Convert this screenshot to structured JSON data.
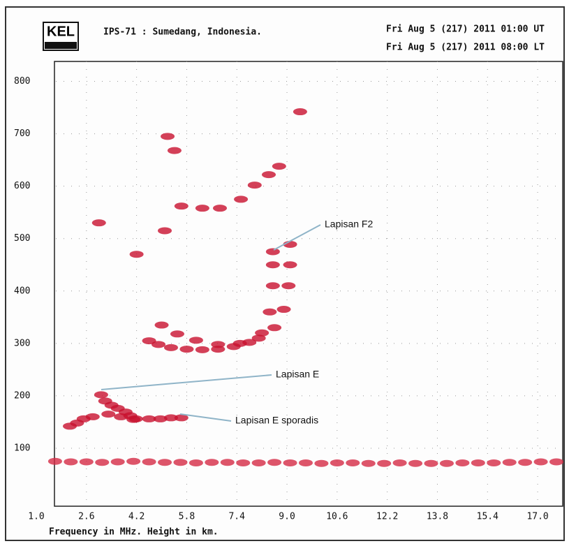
{
  "header": {
    "logo": "KEL",
    "station": "IPS-71 : Sumedang, Indonesia.",
    "time_ut": "Fri Aug  5 (217) 2011 01:00 UT",
    "time_lt": "Fri Aug  5 (217) 2011 08:00 LT"
  },
  "chart_data": {
    "type": "scatter",
    "x_label": "Frequency in MHz. Height in km.",
    "xlim": [
      1.0,
      17.8
    ],
    "ylim": [
      0,
      838
    ],
    "xticks": [
      {
        "value": 1,
        "label": "1.0"
      },
      2.6,
      4.2,
      5.8,
      7.4,
      {
        "value": 9,
        "label": "9.0"
      },
      10.6,
      12.2,
      13.8,
      15.4,
      {
        "value": 17,
        "label": "17.0"
      }
    ],
    "yticks": [
      100,
      200,
      300,
      400,
      500,
      600,
      700,
      800
    ],
    "grid": true,
    "series": [
      {
        "color": "#c8102e",
        "x": [
          4.6,
          4.9,
          5.3,
          5.8,
          6.3,
          6.8,
          7.3,
          7.8,
          8.2,
          8.45,
          8.55,
          8.55,
          8.55
        ],
        "values": [
          305,
          298,
          292,
          289,
          288,
          289,
          294,
          302,
          320,
          360,
          410,
          450,
          475
        ]
      },
      {
        "color": "#c8102e",
        "x": [
          5.0,
          5.5,
          6.1,
          6.8,
          7.5,
          8.1,
          8.6,
          8.9,
          9.05,
          9.1,
          9.1
        ],
        "values": [
          335,
          318,
          306,
          298,
          300,
          310,
          330,
          365,
          410,
          450,
          489
        ]
      },
      {
        "color": "#c8102e",
        "x": [
          5.19,
          5.41,
          5.63,
          6.3,
          6.86,
          7.53,
          7.97,
          8.42,
          8.75,
          9.42,
          3.0,
          4.2,
          5.1
        ],
        "values": [
          695,
          668,
          562,
          558,
          558,
          575,
          602,
          622,
          638,
          742,
          530,
          470,
          515
        ]
      },
      {
        "color": "#c8102e",
        "x": [
          3.07,
          3.2,
          3.4,
          3.6,
          3.85,
          4.0,
          4.18,
          3.3,
          3.7,
          4.1
        ],
        "values": [
          202,
          190,
          182,
          176,
          169,
          162,
          156,
          165,
          160,
          155
        ]
      },
      {
        "color": "#c8102e",
        "x": [
          2.07,
          2.3,
          2.51,
          2.8,
          4.6,
          4.96,
          5.3,
          5.63
        ],
        "values": [
          142,
          148,
          156,
          160,
          156,
          156,
          158,
          158
        ]
      },
      {
        "color": "#d42a45",
        "x": [
          1.6,
          2.1,
          2.6,
          3.1,
          3.6,
          4.1,
          4.6,
          5.1,
          5.6,
          6.1,
          6.6,
          7.1,
          7.6,
          8.1,
          8.6,
          9.1,
          9.6,
          10.1,
          10.6,
          11.1,
          11.6,
          12.1,
          12.6,
          13.1,
          13.6,
          14.1,
          14.6,
          15.1,
          15.6,
          16.1,
          16.6,
          17.1,
          17.6
        ],
        "values": [
          75,
          74,
          74,
          73,
          74,
          75,
          74,
          73,
          73,
          72,
          73,
          73,
          72,
          72,
          73,
          72,
          72,
          71,
          72,
          72,
          71,
          71,
          72,
          71,
          71,
          71,
          72,
          72,
          72,
          73,
          73,
          74,
          74
        ]
      }
    ],
    "annotations": [
      "Lapisan F2",
      "Lapisan E",
      "Lapisan E sporadis"
    ]
  }
}
